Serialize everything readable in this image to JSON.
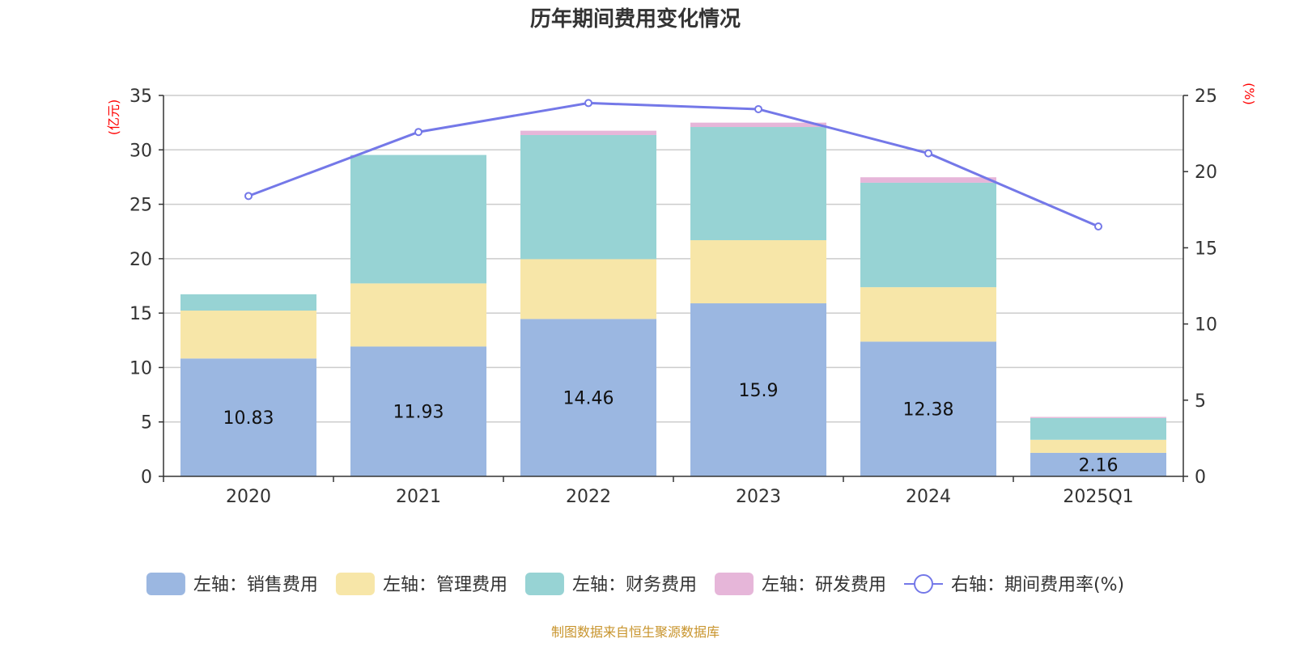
{
  "chart_data": {
    "type": "bar",
    "title": "历年期间费用变化情况",
    "categories": [
      "2020",
      "2021",
      "2022",
      "2023",
      "2024",
      "2025Q1"
    ],
    "left_axis": {
      "unit": "(亿元)",
      "ylim": [
        0,
        35
      ],
      "ticks": [
        "0",
        "5",
        "10",
        "15",
        "20",
        "25",
        "30",
        "35"
      ]
    },
    "right_axis": {
      "unit": "(%)",
      "ylim": [
        0,
        25
      ],
      "ticks": [
        "0",
        "5",
        "10",
        "15",
        "20",
        "25"
      ]
    },
    "series": [
      {
        "name": "左轴：销售费用",
        "type": "bar",
        "stack": true,
        "color": "#9bb7e1",
        "values": [
          10.83,
          11.93,
          14.46,
          15.9,
          12.38,
          2.16
        ],
        "labels": [
          "10.83",
          "11.93",
          "14.46",
          "15.9",
          "12.38",
          "2.16"
        ]
      },
      {
        "name": "左轴：管理费用",
        "type": "bar",
        "stack": true,
        "color": "#f7e6a8",
        "values": [
          4.4,
          5.8,
          5.5,
          5.8,
          5.0,
          1.2
        ]
      },
      {
        "name": "左轴：财务费用",
        "type": "bar",
        "stack": true,
        "color": "#97d3d4",
        "values": [
          1.5,
          11.8,
          11.4,
          10.4,
          9.6,
          2.0
        ]
      },
      {
        "name": "左轴：研发费用",
        "type": "bar",
        "stack": true,
        "color": "#e6b6d9",
        "values": [
          0.0,
          0.0,
          0.4,
          0.4,
          0.5,
          0.1
        ]
      },
      {
        "name": "右轴：期间费用率(%)",
        "type": "line",
        "axis": "right",
        "color": "#7478e8",
        "values": [
          18.4,
          22.6,
          24.5,
          24.1,
          21.2,
          16.4
        ]
      }
    ],
    "unit_color": "#ff0000",
    "source_color": "#c8942c"
  },
  "source": "制图数据来自恒生聚源数据库"
}
